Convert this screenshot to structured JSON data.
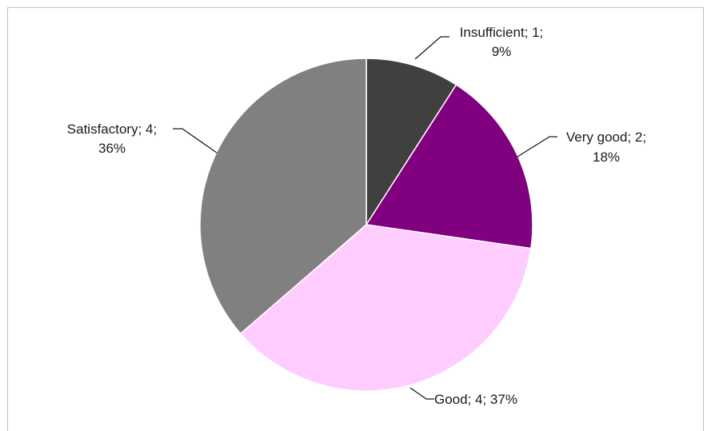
{
  "chart_data": {
    "type": "pie",
    "title": "",
    "categories": [
      "Insufficient",
      "Very good",
      "Good",
      "Satisfactory"
    ],
    "values": [
      1,
      2,
      4,
      4
    ],
    "percent_labels": [
      "9%",
      "18%",
      "37%",
      "36%"
    ],
    "colors": [
      "#404040",
      "#800080",
      "#ffccff",
      "#808080"
    ],
    "labels": [
      {
        "line1": "Insufficient; 1;",
        "line2": "9%"
      },
      {
        "line1": "Very good; 2;",
        "line2": "18%"
      },
      {
        "line1": "Good; 4; 37%",
        "line2": ""
      },
      {
        "line1": "Satisfactory; 4;",
        "line2": "36%"
      }
    ],
    "legend": "none",
    "border_color": "#bfbfbf"
  }
}
